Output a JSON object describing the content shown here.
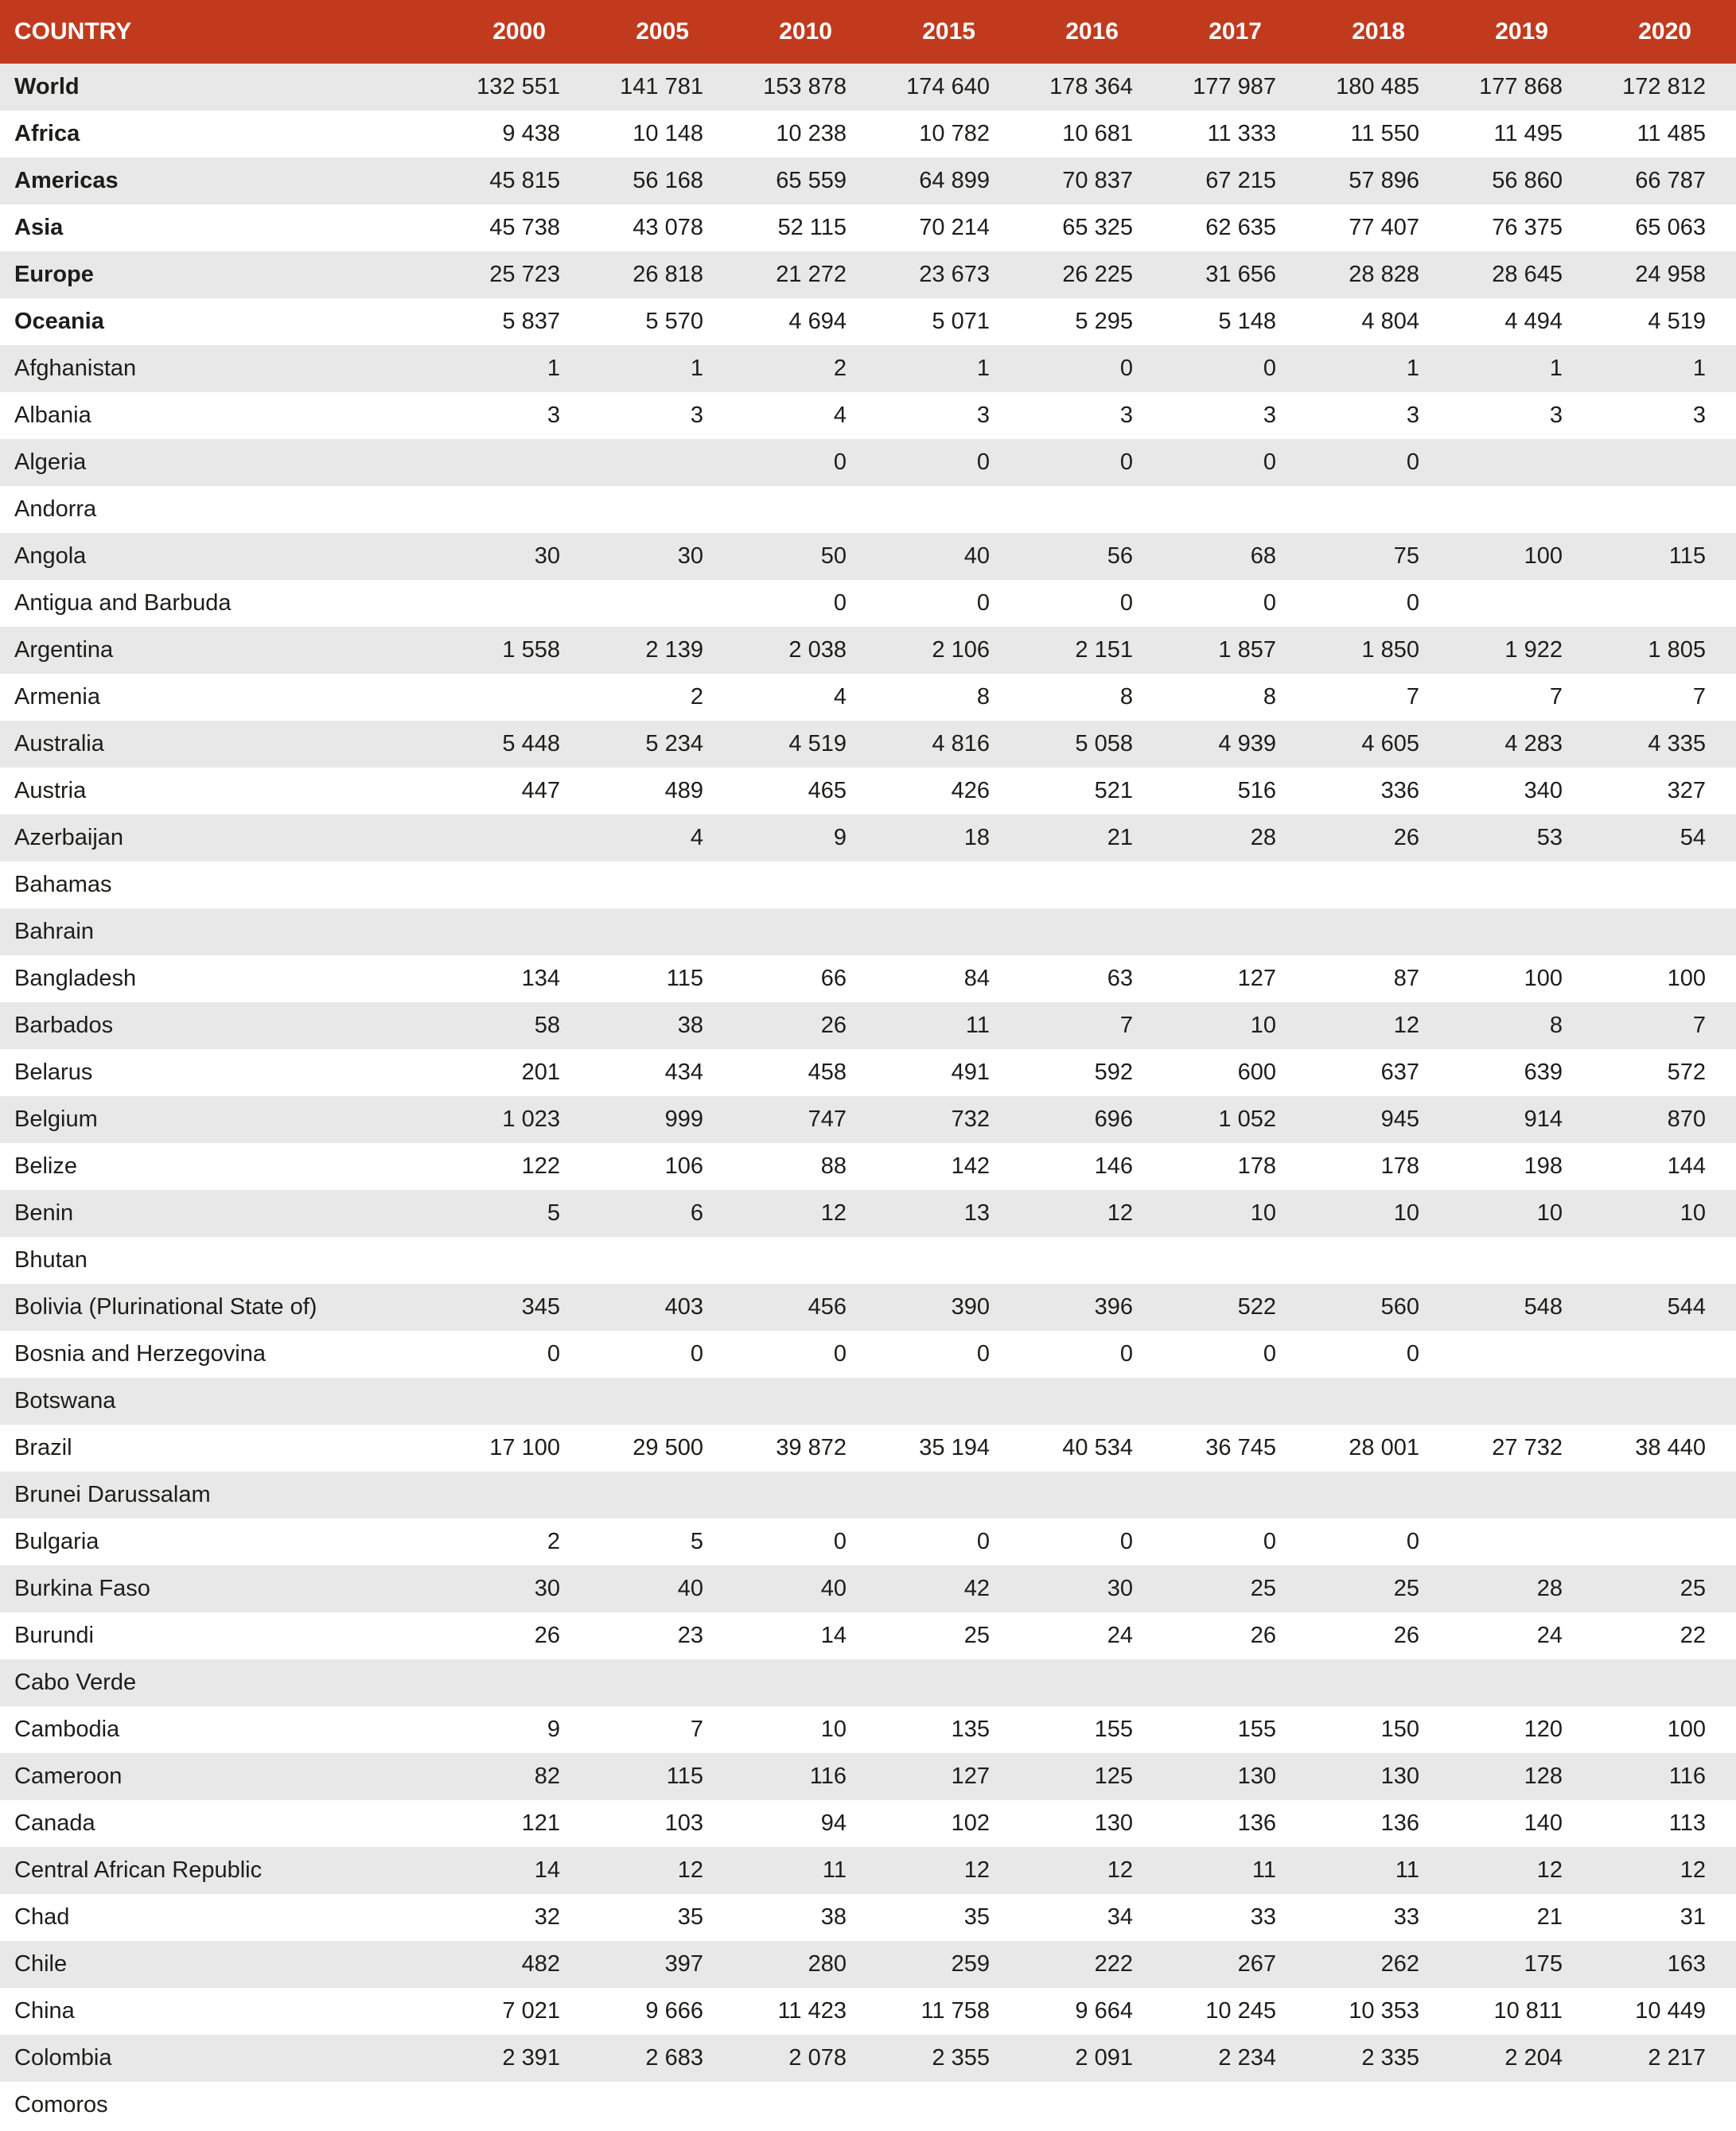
{
  "colors": {
    "header_bg": "#c13a1d",
    "header_text": "#ffffff",
    "row_alt_bg": "#e8e8e8",
    "row_bg": "#ffffff",
    "body_text": "#1d1d1b"
  },
  "chart_data": {
    "type": "table",
    "columns": [
      "COUNTRY",
      "2000",
      "2005",
      "2010",
      "2015",
      "2016",
      "2017",
      "2018",
      "2019",
      "2020"
    ],
    "rows": [
      {
        "name": "World",
        "bold": true,
        "values": [
          "132 551",
          "141 781",
          "153 878",
          "174 640",
          "178 364",
          "177 987",
          "180 485",
          "177 868",
          "172 812"
        ]
      },
      {
        "name": "Africa",
        "bold": true,
        "values": [
          "9 438",
          "10 148",
          "10 238",
          "10 782",
          "10 681",
          "11 333",
          "11 550",
          "11 495",
          "11 485"
        ]
      },
      {
        "name": "Americas",
        "bold": true,
        "values": [
          "45 815",
          "56 168",
          "65 559",
          "64 899",
          "70 837",
          "67 215",
          "57 896",
          "56 860",
          "66 787"
        ]
      },
      {
        "name": "Asia",
        "bold": true,
        "values": [
          "45 738",
          "43 078",
          "52 115",
          "70 214",
          "65 325",
          "62 635",
          "77 407",
          "76 375",
          "65 063"
        ]
      },
      {
        "name": "Europe",
        "bold": true,
        "values": [
          "25 723",
          "26 818",
          "21 272",
          "23 673",
          "26 225",
          "31 656",
          "28 828",
          "28 645",
          "24 958"
        ]
      },
      {
        "name": "Oceania",
        "bold": true,
        "values": [
          "5 837",
          "5 570",
          "4 694",
          "5 071",
          "5 295",
          "5 148",
          "4 804",
          "4 494",
          "4 519"
        ]
      },
      {
        "name": "Afghanistan",
        "bold": false,
        "values": [
          "1",
          "1",
          "2",
          "1",
          "0",
          "0",
          "1",
          "1",
          "1"
        ]
      },
      {
        "name": "Albania",
        "bold": false,
        "values": [
          "3",
          "3",
          "4",
          "3",
          "3",
          "3",
          "3",
          "3",
          "3"
        ]
      },
      {
        "name": "Algeria",
        "bold": false,
        "values": [
          "",
          "",
          "0",
          "0",
          "0",
          "0",
          "0",
          "",
          ""
        ]
      },
      {
        "name": "Andorra",
        "bold": false,
        "values": [
          "",
          "",
          "",
          "",
          "",
          "",
          "",
          "",
          ""
        ]
      },
      {
        "name": "Angola",
        "bold": false,
        "values": [
          "30",
          "30",
          "50",
          "40",
          "56",
          "68",
          "75",
          "100",
          "115"
        ]
      },
      {
        "name": "Antigua and Barbuda",
        "bold": false,
        "values": [
          "",
          "",
          "0",
          "0",
          "0",
          "0",
          "0",
          "",
          ""
        ]
      },
      {
        "name": "Argentina",
        "bold": false,
        "values": [
          "1 558",
          "2 139",
          "2 038",
          "2 106",
          "2 151",
          "1 857",
          "1 850",
          "1 922",
          "1 805"
        ]
      },
      {
        "name": "Armenia",
        "bold": false,
        "values": [
          "",
          "2",
          "4",
          "8",
          "8",
          "8",
          "7",
          "7",
          "7"
        ]
      },
      {
        "name": "Australia",
        "bold": false,
        "values": [
          "5 448",
          "5 234",
          "4 519",
          "4 816",
          "5 058",
          "4 939",
          "4 605",
          "4 283",
          "4 335"
        ]
      },
      {
        "name": "Austria",
        "bold": false,
        "values": [
          "447",
          "489",
          "465",
          "426",
          "521",
          "516",
          "336",
          "340",
          "327"
        ]
      },
      {
        "name": "Azerbaijan",
        "bold": false,
        "values": [
          "",
          "4",
          "9",
          "18",
          "21",
          "28",
          "26",
          "53",
          "54"
        ]
      },
      {
        "name": "Bahamas",
        "bold": false,
        "values": [
          "",
          "",
          "",
          "",
          "",
          "",
          "",
          "",
          ""
        ]
      },
      {
        "name": "Bahrain",
        "bold": false,
        "values": [
          "",
          "",
          "",
          "",
          "",
          "",
          "",
          "",
          ""
        ]
      },
      {
        "name": "Bangladesh",
        "bold": false,
        "values": [
          "134",
          "115",
          "66",
          "84",
          "63",
          "127",
          "87",
          "100",
          "100"
        ]
      },
      {
        "name": "Barbados",
        "bold": false,
        "values": [
          "58",
          "38",
          "26",
          "11",
          "7",
          "10",
          "12",
          "8",
          "7"
        ]
      },
      {
        "name": "Belarus",
        "bold": false,
        "values": [
          "201",
          "434",
          "458",
          "491",
          "592",
          "600",
          "637",
          "639",
          "572"
        ]
      },
      {
        "name": "Belgium",
        "bold": false,
        "values": [
          "1 023",
          "999",
          "747",
          "732",
          "696",
          "1 052",
          "945",
          "914",
          "870"
        ]
      },
      {
        "name": "Belize",
        "bold": false,
        "values": [
          "122",
          "106",
          "88",
          "142",
          "146",
          "178",
          "178",
          "198",
          "144"
        ]
      },
      {
        "name": "Benin",
        "bold": false,
        "values": [
          "5",
          "6",
          "12",
          "13",
          "12",
          "10",
          "10",
          "10",
          "10"
        ]
      },
      {
        "name": "Bhutan",
        "bold": false,
        "values": [
          "",
          "",
          "",
          "",
          "",
          "",
          "",
          "",
          ""
        ]
      },
      {
        "name": "Bolivia (Plurinational State of)",
        "bold": false,
        "values": [
          "345",
          "403",
          "456",
          "390",
          "396",
          "522",
          "560",
          "548",
          "544"
        ]
      },
      {
        "name": "Bosnia and Herzegovina",
        "bold": false,
        "values": [
          "0",
          "0",
          "0",
          "0",
          "0",
          "0",
          "0",
          "",
          ""
        ]
      },
      {
        "name": "Botswana",
        "bold": false,
        "values": [
          "",
          "",
          "",
          "",
          "",
          "",
          "",
          "",
          ""
        ]
      },
      {
        "name": "Brazil",
        "bold": false,
        "values": [
          "17 100",
          "29 500",
          "39 872",
          "35 194",
          "40 534",
          "36 745",
          "28 001",
          "27 732",
          "38 440"
        ]
      },
      {
        "name": "Brunei Darussalam",
        "bold": false,
        "values": [
          "",
          "",
          "",
          "",
          "",
          "",
          "",
          "",
          ""
        ]
      },
      {
        "name": "Bulgaria",
        "bold": false,
        "values": [
          "2",
          "5",
          "0",
          "0",
          "0",
          "0",
          "0",
          "",
          ""
        ]
      },
      {
        "name": "Burkina Faso",
        "bold": false,
        "values": [
          "30",
          "40",
          "40",
          "42",
          "30",
          "25",
          "25",
          "28",
          "25"
        ]
      },
      {
        "name": "Burundi",
        "bold": false,
        "values": [
          "26",
          "23",
          "14",
          "25",
          "24",
          "26",
          "26",
          "24",
          "22"
        ]
      },
      {
        "name": "Cabo Verde",
        "bold": false,
        "values": [
          "",
          "",
          "",
          "",
          "",
          "",
          "",
          "",
          ""
        ]
      },
      {
        "name": "Cambodia",
        "bold": false,
        "values": [
          "9",
          "7",
          "10",
          "135",
          "155",
          "155",
          "150",
          "120",
          "100"
        ]
      },
      {
        "name": "Cameroon",
        "bold": false,
        "values": [
          "82",
          "115",
          "116",
          "127",
          "125",
          "130",
          "130",
          "128",
          "116"
        ]
      },
      {
        "name": "Canada",
        "bold": false,
        "values": [
          "121",
          "103",
          "94",
          "102",
          "130",
          "136",
          "136",
          "140",
          "113"
        ]
      },
      {
        "name": "Central African Republic",
        "bold": false,
        "values": [
          "14",
          "12",
          "11",
          "12",
          "12",
          "11",
          "11",
          "12",
          "12"
        ]
      },
      {
        "name": "Chad",
        "bold": false,
        "values": [
          "32",
          "35",
          "38",
          "35",
          "34",
          "33",
          "33",
          "21",
          "31"
        ]
      },
      {
        "name": "Chile",
        "bold": false,
        "values": [
          "482",
          "397",
          "280",
          "259",
          "222",
          "267",
          "262",
          "175",
          "163"
        ]
      },
      {
        "name": "China",
        "bold": false,
        "values": [
          "7 021",
          "9 666",
          "11 423",
          "11 758",
          "9 664",
          "10 245",
          "10 353",
          "10 811",
          "10 449"
        ]
      },
      {
        "name": "Colombia",
        "bold": false,
        "values": [
          "2 391",
          "2 683",
          "2 078",
          "2 355",
          "2 091",
          "2 234",
          "2 335",
          "2 204",
          "2 217"
        ]
      },
      {
        "name": "Comoros",
        "bold": false,
        "values": [
          "",
          "",
          "",
          "",
          "",
          "",
          "",
          "",
          ""
        ]
      }
    ]
  }
}
